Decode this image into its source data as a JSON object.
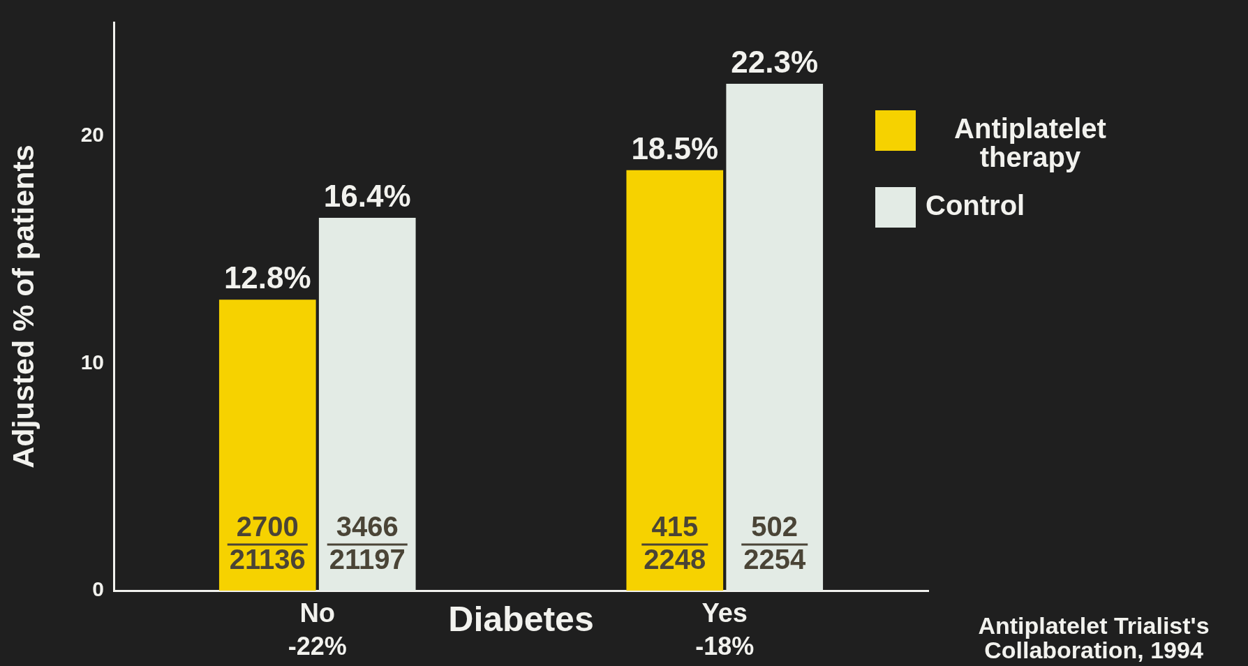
{
  "chart_data": {
    "type": "bar",
    "xlabel": "Diabetes",
    "ylabel": "Adjusted % of patients",
    "categories": [
      "No",
      "Yes"
    ],
    "series": [
      {
        "name": "Antiplatelet therapy",
        "color": "#f6d200",
        "values": [
          12.8,
          18.5
        ],
        "value_labels": [
          "12.8%",
          "18.5%"
        ]
      },
      {
        "name": "Control",
        "color": "#e3ebe5",
        "values": [
          16.4,
          22.3
        ],
        "value_labels": [
          "16.4%",
          "22.3%"
        ]
      }
    ],
    "ylim": [
      0,
      25
    ],
    "yticks": [
      0,
      10,
      20
    ],
    "legend": "right",
    "annotations": [
      "-22%",
      "-18%",
      "2700",
      "21136",
      "3466",
      "21197",
      "415",
      "2248",
      "502",
      "2254",
      "Antiplatelet Trialist's Collaboration, 1994"
    ]
  }
}
